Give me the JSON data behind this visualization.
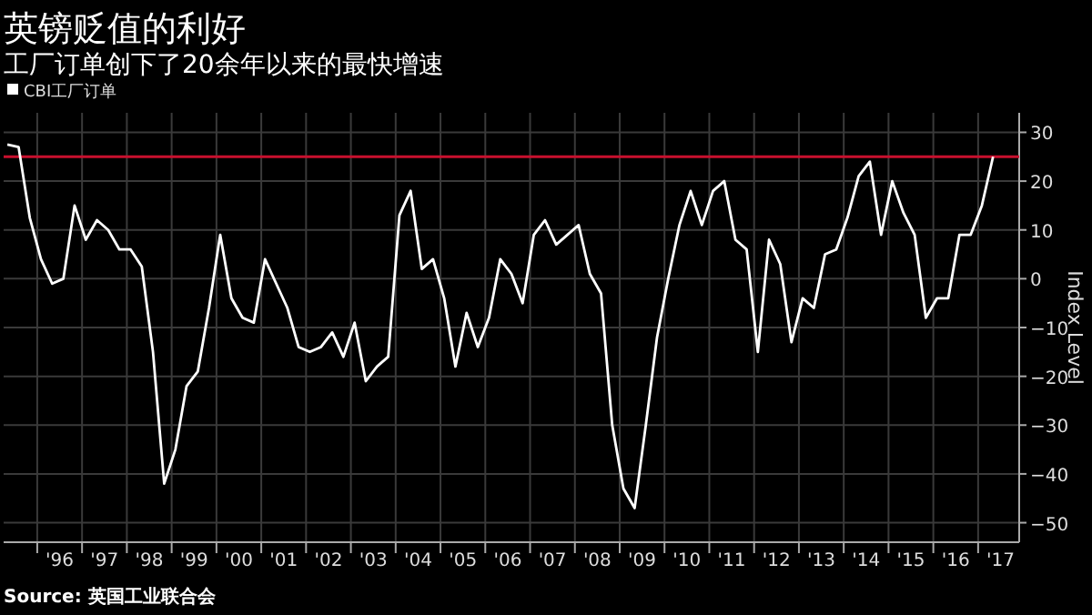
{
  "chart_data": {
    "type": "line",
    "title": "英镑贬值的利好",
    "subtitle": "工厂订单创下了20余年以来的最快增速",
    "ylabel": "Index Level",
    "annotations": [
      "Source: 英国工业联合会"
    ],
    "legend": "top left",
    "grid": true,
    "series": [
      {
        "name": "CBI工厂订单",
        "color": "#ffffff",
        "x": [
          "1995-05",
          "1995-08",
          "1995-11",
          "1996-02",
          "1996-05",
          "1996-08",
          "1996-11",
          "1997-02",
          "1997-05",
          "1997-08",
          "1997-11",
          "1998-02",
          "1998-05",
          "1998-08",
          "1998-11",
          "1999-02",
          "1999-05",
          "1999-08",
          "1999-11",
          "2000-02",
          "2000-05",
          "2000-08",
          "2000-11",
          "2001-02",
          "2001-05",
          "2001-08",
          "2001-11",
          "2002-02",
          "2002-05",
          "2002-08",
          "2002-11",
          "2003-02",
          "2003-05",
          "2003-08",
          "2003-11",
          "2004-02",
          "2004-05",
          "2004-08",
          "2004-11",
          "2005-02",
          "2005-05",
          "2005-08",
          "2005-11",
          "2006-02",
          "2006-05",
          "2006-08",
          "2006-11",
          "2007-02",
          "2007-05",
          "2007-08",
          "2007-11",
          "2008-02",
          "2008-05",
          "2008-08",
          "2008-11",
          "2009-02",
          "2009-05",
          "2009-08",
          "2009-11",
          "2010-02",
          "2010-05",
          "2010-08",
          "2010-11",
          "2011-02",
          "2011-05",
          "2011-08",
          "2011-11",
          "2012-02",
          "2012-05",
          "2012-08",
          "2012-11",
          "2013-02",
          "2013-05",
          "2013-08",
          "2013-11",
          "2014-02",
          "2014-05",
          "2014-08",
          "2014-11",
          "2015-02",
          "2015-05",
          "2015-08",
          "2015-11",
          "2016-02",
          "2016-05",
          "2016-08",
          "2016-11",
          "2017-02",
          "2017-05"
        ],
        "values": [
          27.5,
          27,
          12.5,
          4,
          -1,
          0,
          15,
          8,
          12,
          10,
          6,
          6,
          2.5,
          -15,
          -42,
          -35,
          -22,
          -19,
          -6,
          9,
          -4,
          -8,
          -9,
          4,
          -1,
          -6,
          -14,
          -15,
          -14,
          -11,
          -16,
          -9,
          -21,
          -18,
          -16,
          13,
          18,
          2,
          4,
          -4,
          -18,
          -7,
          -14,
          -8,
          4,
          1,
          -5,
          9,
          12,
          7,
          9,
          11,
          1,
          -3,
          -30,
          -43,
          -47,
          -30,
          -12,
          0,
          11,
          18,
          11,
          18,
          20,
          8,
          6,
          -15,
          8,
          3,
          -13,
          -4,
          -6,
          5,
          6,
          12.5,
          21,
          24,
          9,
          20,
          13.5,
          9,
          -8,
          -4,
          -4,
          9,
          9,
          15,
          25
        ]
      }
    ],
    "ref_lines": [
      {
        "axis": "y",
        "value": 25,
        "color": "#c8102e"
      }
    ],
    "xlim": [
      "1995-04",
      "2017-12"
    ],
    "xticks": [
      {
        "value": "1996-01",
        "label": null
      },
      {
        "value": "1996-07",
        "label": "'96"
      },
      {
        "value": "1997-01",
        "label": null
      },
      {
        "value": "1997-07",
        "label": "'97"
      },
      {
        "value": "1998-01",
        "label": null
      },
      {
        "value": "1998-07",
        "label": "'98"
      },
      {
        "value": "1999-01",
        "label": null
      },
      {
        "value": "1999-07",
        "label": "'99"
      },
      {
        "value": "2000-01",
        "label": null
      },
      {
        "value": "2000-07",
        "label": "'00"
      },
      {
        "value": "2001-01",
        "label": null
      },
      {
        "value": "2001-07",
        "label": "'01"
      },
      {
        "value": "2002-01",
        "label": null
      },
      {
        "value": "2002-07",
        "label": "'02"
      },
      {
        "value": "2003-01",
        "label": null
      },
      {
        "value": "2003-07",
        "label": "'03"
      },
      {
        "value": "2004-01",
        "label": null
      },
      {
        "value": "2004-07",
        "label": "'04"
      },
      {
        "value": "2005-01",
        "label": null
      },
      {
        "value": "2005-07",
        "label": "'05"
      },
      {
        "value": "2006-01",
        "label": null
      },
      {
        "value": "2006-07",
        "label": "'06"
      },
      {
        "value": "2007-01",
        "label": null
      },
      {
        "value": "2007-07",
        "label": "'07"
      },
      {
        "value": "2008-01",
        "label": null
      },
      {
        "value": "2008-07",
        "label": "'08"
      },
      {
        "value": "2009-01",
        "label": null
      },
      {
        "value": "2009-07",
        "label": "'09"
      },
      {
        "value": "2010-01",
        "label": null
      },
      {
        "value": "2010-07",
        "label": "'10"
      },
      {
        "value": "2011-01",
        "label": null
      },
      {
        "value": "2011-07",
        "label": "'11"
      },
      {
        "value": "2012-01",
        "label": null
      },
      {
        "value": "2012-07",
        "label": "'12"
      },
      {
        "value": "2013-01",
        "label": null
      },
      {
        "value": "2013-07",
        "label": "'13"
      },
      {
        "value": "2014-01",
        "label": null
      },
      {
        "value": "2014-07",
        "label": "'14"
      },
      {
        "value": "2015-01",
        "label": null
      },
      {
        "value": "2015-07",
        "label": "'15"
      },
      {
        "value": "2016-01",
        "label": null
      },
      {
        "value": "2016-07",
        "label": "'16"
      },
      {
        "value": "2017-01",
        "label": null
      },
      {
        "value": "2017-07",
        "label": "'17"
      }
    ],
    "ylim": [
      -54,
      34
    ],
    "yticks": [
      -50,
      -40,
      -30,
      -20,
      -10,
      0,
      10,
      20,
      30
    ]
  }
}
